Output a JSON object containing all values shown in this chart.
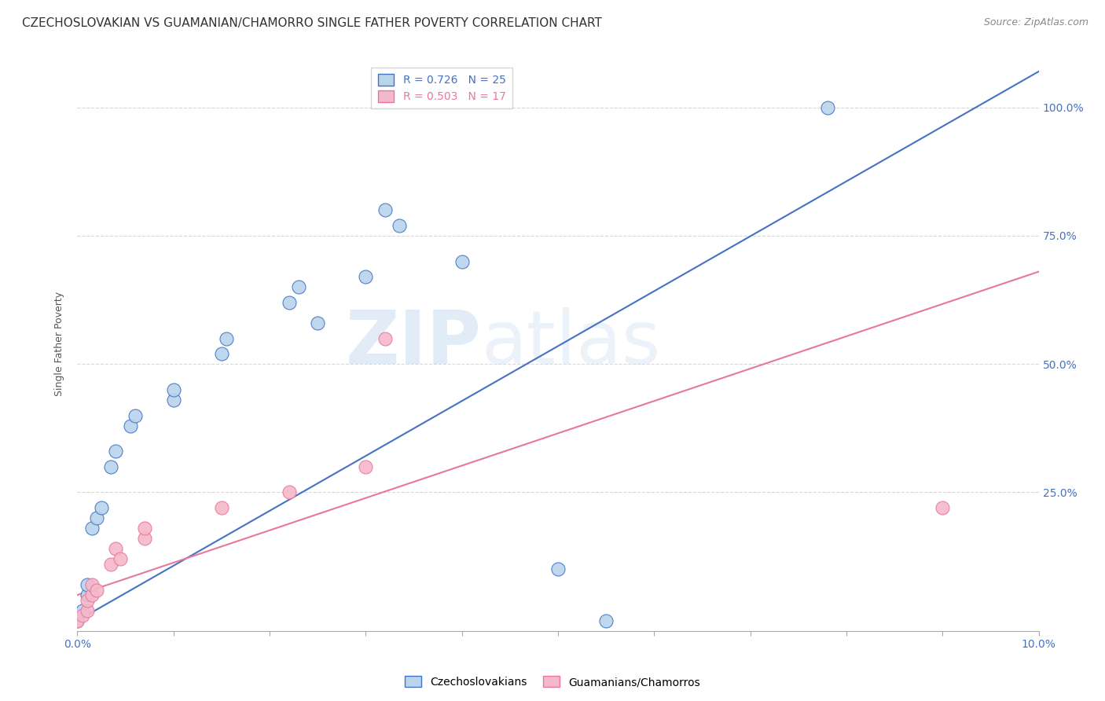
{
  "title": "CZECHOSLOVAKIAN VS GUAMANIAN/CHAMORRO SINGLE FATHER POVERTY CORRELATION CHART",
  "source": "Source: ZipAtlas.com",
  "ylabel": "Single Father Poverty",
  "y_ticks": [
    "25.0%",
    "50.0%",
    "75.0%",
    "100.0%"
  ],
  "legend_blue": "R = 0.726   N = 25",
  "legend_pink": "R = 0.503   N = 17",
  "legend_label_blue": "Czechoslovakians",
  "legend_label_pink": "Guamanians/Chamorros",
  "blue_points": [
    [
      0.0,
      0.0
    ],
    [
      0.05,
      0.02
    ],
    [
      0.1,
      0.05
    ],
    [
      0.1,
      0.07
    ],
    [
      0.15,
      0.18
    ],
    [
      0.2,
      0.2
    ],
    [
      0.25,
      0.22
    ],
    [
      0.35,
      0.3
    ],
    [
      0.4,
      0.33
    ],
    [
      0.55,
      0.38
    ],
    [
      0.6,
      0.4
    ],
    [
      1.0,
      0.43
    ],
    [
      1.0,
      0.45
    ],
    [
      1.5,
      0.52
    ],
    [
      1.55,
      0.55
    ],
    [
      2.2,
      0.62
    ],
    [
      2.3,
      0.65
    ],
    [
      2.5,
      0.58
    ],
    [
      3.0,
      0.67
    ],
    [
      3.2,
      0.8
    ],
    [
      3.35,
      0.77
    ],
    [
      4.0,
      0.7
    ],
    [
      5.0,
      0.1
    ],
    [
      5.5,
      0.0
    ],
    [
      7.8,
      1.0
    ]
  ],
  "pink_points": [
    [
      0.0,
      0.0
    ],
    [
      0.05,
      0.01
    ],
    [
      0.1,
      0.02
    ],
    [
      0.1,
      0.04
    ],
    [
      0.15,
      0.05
    ],
    [
      0.15,
      0.07
    ],
    [
      0.2,
      0.06
    ],
    [
      0.35,
      0.11
    ],
    [
      0.4,
      0.14
    ],
    [
      0.45,
      0.12
    ],
    [
      0.7,
      0.16
    ],
    [
      0.7,
      0.18
    ],
    [
      1.5,
      0.22
    ],
    [
      2.2,
      0.25
    ],
    [
      3.0,
      0.3
    ],
    [
      3.2,
      0.55
    ],
    [
      9.0,
      0.22
    ]
  ],
  "blue_line_x": [
    0.0,
    10.0
  ],
  "blue_line_y": [
    0.0,
    1.07
  ],
  "pink_line_x": [
    0.0,
    10.0
  ],
  "pink_line_y": [
    0.05,
    0.68
  ],
  "xlim": [
    0.0,
    10.0
  ],
  "ylim": [
    -0.02,
    1.1
  ],
  "blue_color": "#bad4ec",
  "blue_line_color": "#4472c4",
  "pink_color": "#f4b8cb",
  "pink_line_color": "#e8789a",
  "background_color": "#ffffff",
  "grid_color": "#d8d8d8",
  "title_fontsize": 11,
  "source_fontsize": 9,
  "axis_fontsize": 9,
  "watermark_zip": "ZIP",
  "watermark_atlas": "atlas"
}
